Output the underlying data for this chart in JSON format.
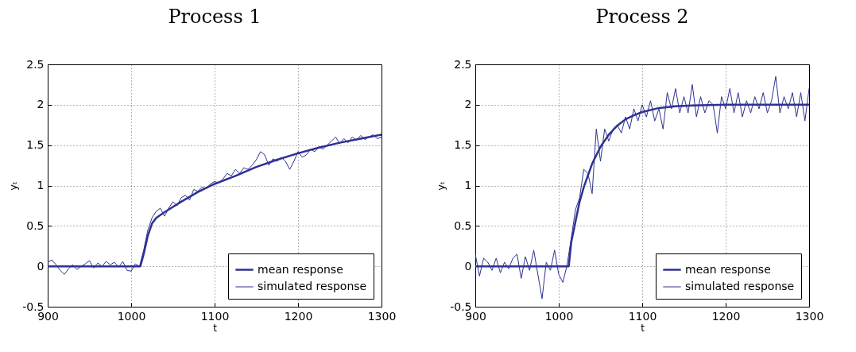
{
  "chart_data": [
    {
      "type": "line",
      "title": "Process 1",
      "xlabel": "t",
      "ylabel": "yₜ",
      "xlim": [
        900,
        1300
      ],
      "ylim": [
        -0.5,
        2.5
      ],
      "xticks": [
        900,
        1000,
        1100,
        1200,
        1300
      ],
      "yticks": [
        -0.5,
        0,
        0.5,
        1,
        1.5,
        2,
        2.5
      ],
      "grid": true,
      "legend": "bottom right",
      "series": [
        {
          "name": "mean response",
          "color": "#2e3192",
          "x": [
            900,
            1011,
            1015,
            1020,
            1025,
            1030,
            1040,
            1060,
            1080,
            1100,
            1125,
            1150,
            1175,
            1200,
            1225,
            1250,
            1275,
            1300
          ],
          "values": [
            0,
            0,
            0.15,
            0.38,
            0.53,
            0.6,
            0.67,
            0.8,
            0.92,
            1.02,
            1.12,
            1.23,
            1.32,
            1.4,
            1.47,
            1.53,
            1.58,
            1.63
          ]
        },
        {
          "name": "simulated response",
          "color": "#2e3192",
          "x": [
            900,
            905,
            910,
            915,
            920,
            925,
            930,
            935,
            940,
            945,
            950,
            955,
            960,
            965,
            970,
            975,
            980,
            985,
            990,
            995,
            1000,
            1005,
            1010,
            1015,
            1020,
            1025,
            1030,
            1035,
            1040,
            1045,
            1050,
            1055,
            1060,
            1065,
            1070,
            1075,
            1080,
            1085,
            1090,
            1095,
            1100,
            1105,
            1110,
            1115,
            1120,
            1125,
            1130,
            1135,
            1140,
            1145,
            1150,
            1155,
            1160,
            1165,
            1170,
            1175,
            1180,
            1185,
            1190,
            1195,
            1200,
            1205,
            1210,
            1215,
            1220,
            1225,
            1230,
            1235,
            1240,
            1245,
            1250,
            1255,
            1260,
            1265,
            1270,
            1275,
            1280,
            1285,
            1290,
            1295,
            1300
          ],
          "values": [
            0.05,
            0.08,
            0.02,
            -0.05,
            -0.1,
            -0.03,
            0.02,
            -0.04,
            0,
            0.03,
            0.07,
            -0.02,
            0.04,
            0,
            0.06,
            0.02,
            0.05,
            -0.01,
            0.06,
            -0.05,
            -0.06,
            0.03,
            0,
            0.2,
            0.45,
            0.6,
            0.68,
            0.72,
            0.62,
            0.72,
            0.8,
            0.75,
            0.85,
            0.88,
            0.82,
            0.95,
            0.93,
            0.98,
            0.96,
            1.02,
            1.05,
            1.03,
            1.08,
            1.15,
            1.12,
            1.2,
            1.15,
            1.22,
            1.2,
            1.25,
            1.32,
            1.42,
            1.38,
            1.25,
            1.33,
            1.3,
            1.35,
            1.3,
            1.2,
            1.3,
            1.42,
            1.35,
            1.38,
            1.45,
            1.42,
            1.48,
            1.45,
            1.5,
            1.55,
            1.6,
            1.52,
            1.58,
            1.53,
            1.6,
            1.56,
            1.62,
            1.57,
            1.6,
            1.63,
            1.58,
            1.6
          ]
        }
      ]
    },
    {
      "type": "line",
      "title": "Process 2",
      "xlabel": "t",
      "ylabel": "yₜ",
      "xlim": [
        900,
        1300
      ],
      "ylim": [
        -0.5,
        2.5
      ],
      "xticks": [
        900,
        1000,
        1100,
        1200,
        1300
      ],
      "yticks": [
        -0.5,
        0,
        0.5,
        1,
        1.5,
        2,
        2.5
      ],
      "grid": true,
      "legend": "bottom right",
      "series": [
        {
          "name": "mean response",
          "color": "#2e3192",
          "x": [
            900,
            1012,
            1015,
            1020,
            1025,
            1030,
            1040,
            1050,
            1060,
            1070,
            1080,
            1090,
            1100,
            1120,
            1140,
            1160,
            1200,
            1300
          ],
          "values": [
            0,
            0,
            0.3,
            0.55,
            0.8,
            0.98,
            1.27,
            1.48,
            1.63,
            1.74,
            1.82,
            1.87,
            1.91,
            1.96,
            1.98,
            1.99,
            2,
            2
          ]
        },
        {
          "name": "simulated response",
          "color": "#2e3192",
          "x": [
            900,
            905,
            910,
            915,
            920,
            925,
            930,
            935,
            940,
            945,
            950,
            955,
            960,
            965,
            970,
            975,
            980,
            985,
            990,
            995,
            1000,
            1005,
            1010,
            1015,
            1020,
            1025,
            1030,
            1035,
            1040,
            1045,
            1050,
            1055,
            1060,
            1065,
            1070,
            1075,
            1080,
            1085,
            1090,
            1095,
            1100,
            1105,
            1110,
            1115,
            1120,
            1125,
            1130,
            1135,
            1140,
            1145,
            1150,
            1155,
            1160,
            1165,
            1170,
            1175,
            1180,
            1185,
            1190,
            1195,
            1200,
            1205,
            1210,
            1215,
            1220,
            1225,
            1230,
            1235,
            1240,
            1245,
            1250,
            1255,
            1260,
            1265,
            1270,
            1275,
            1280,
            1285,
            1290,
            1295,
            1300
          ],
          "values": [
            0.15,
            -0.12,
            0.1,
            0.05,
            -0.05,
            0.1,
            -0.08,
            0.05,
            -0.03,
            0.1,
            0.15,
            -0.15,
            0.12,
            -0.05,
            0.2,
            -0.1,
            -0.4,
            0.05,
            -0.05,
            0.2,
            -0.1,
            -0.2,
            0.02,
            0.35,
            0.7,
            0.85,
            1.2,
            1.15,
            0.9,
            1.7,
            1.3,
            1.7,
            1.55,
            1.7,
            1.75,
            1.65,
            1.85,
            1.7,
            1.95,
            1.8,
            2,
            1.85,
            2.05,
            1.8,
            1.95,
            1.7,
            2.15,
            1.95,
            2.2,
            1.9,
            2.1,
            1.9,
            2.25,
            1.85,
            2.1,
            1.9,
            2.05,
            2,
            1.65,
            2.1,
            1.95,
            2.2,
            1.9,
            2.15,
            1.85,
            2.05,
            1.9,
            2.1,
            1.95,
            2.15,
            1.9,
            2.05,
            2.35,
            1.9,
            2.1,
            1.95,
            2.15,
            1.85,
            2.15,
            1.8,
            2.2
          ]
        }
      ]
    }
  ]
}
